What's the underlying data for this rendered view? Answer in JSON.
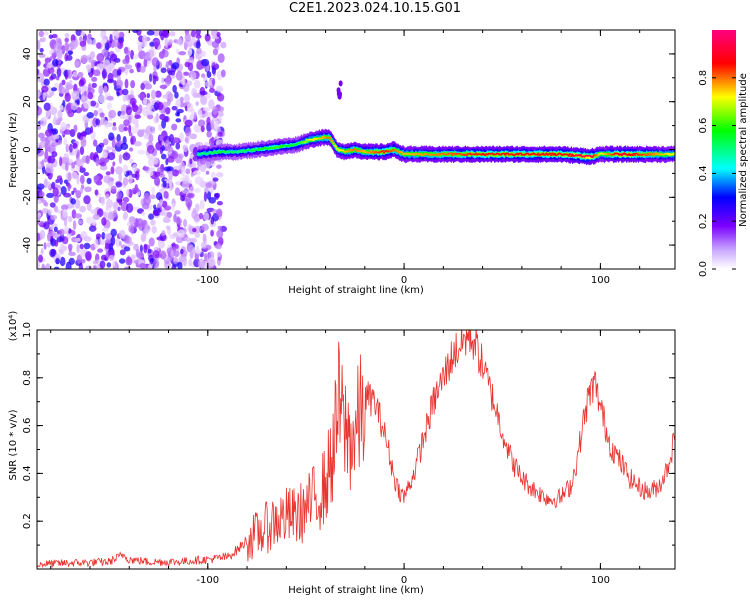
{
  "title": "C2E1.2023.024.10.15.G01",
  "chart_data": [
    {
      "type": "heatmap",
      "xlabel": "Height of straight line (km)",
      "ylabel": "Frequency (Hz)",
      "xlim": [
        -187,
        138
      ],
      "ylim": [
        -50,
        50
      ],
      "x_ticks": [
        -100,
        0,
        100
      ],
      "y_ticks": [
        -40,
        -20,
        0,
        20,
        40
      ],
      "colorbar": {
        "label": "Normalized spectral amplitude",
        "range": [
          0.0,
          1.0
        ],
        "ticks": [
          0.0,
          0.2,
          0.4,
          0.6,
          0.8
        ],
        "colormap": [
          "#ffffff",
          "#7b00ff",
          "#0000ff",
          "#00ffff",
          "#00ff00",
          "#ffff00",
          "#ff0000",
          "#ff0080"
        ]
      },
      "ridge": {
        "x": [
          -105,
          -95,
          -85,
          -75,
          -65,
          -55,
          -48,
          -42,
          -38,
          -34,
          -30,
          -25,
          -20,
          -15,
          -10,
          -5,
          0,
          20,
          40,
          60,
          80,
          95,
          100,
          110,
          125,
          138
        ],
        "y": [
          -2,
          -1,
          -1,
          0,
          1,
          2,
          4,
          5,
          5,
          0,
          -1,
          0,
          -1,
          -1,
          -1,
          0,
          -2,
          -2,
          -2,
          -2,
          -2,
          -3,
          -2,
          -2,
          -2,
          -2
        ],
        "amplitude": [
          0.5,
          0.55,
          0.5,
          0.55,
          0.6,
          0.55,
          0.7,
          0.75,
          0.8,
          0.7,
          0.75,
          0.8,
          0.75,
          0.8,
          0.85,
          0.8,
          0.75,
          0.8,
          0.85,
          0.85,
          0.85,
          0.95,
          0.7,
          0.9,
          0.8,
          0.7
        ]
      },
      "noise_region": {
        "x_range": [
          -187,
          -92
        ],
        "amplitude": 0.15
      },
      "secondary_feature": {
        "x": -33,
        "y": 25,
        "amplitude": 0.15
      },
      "grid": false
    },
    {
      "type": "line",
      "xlabel": "Height of straight line (km)",
      "ylabel": "SNR (10 * v/v)",
      "y_multiplier": "(x10⁴)",
      "xlim": [
        -187,
        138
      ],
      "ylim": [
        0,
        1.0
      ],
      "x_ticks": [
        -100,
        0,
        100
      ],
      "y_ticks": [
        0.2,
        0.4,
        0.6,
        0.8,
        1.0
      ],
      "series": [
        {
          "color": "#e8332e",
          "x": [
            -187,
            -170,
            -150,
            -143,
            -140,
            -130,
            -115,
            -100,
            -90,
            -85,
            -80,
            -72,
            -66,
            -60,
            -55,
            -50,
            -45,
            -40,
            -36,
            -33,
            -31,
            -28,
            -25,
            -22,
            -19,
            -15,
            -11,
            -8,
            -5,
            -2,
            0,
            5,
            10,
            15,
            20,
            25,
            30,
            33,
            36,
            40,
            45,
            50,
            55,
            60,
            65,
            70,
            75,
            80,
            85,
            88,
            91,
            94,
            97,
            100,
            105,
            110,
            115,
            120,
            125,
            130,
            134,
            138
          ],
          "y": [
            0.02,
            0.025,
            0.03,
            0.06,
            0.04,
            0.03,
            0.03,
            0.04,
            0.05,
            0.08,
            0.12,
            0.16,
            0.2,
            0.22,
            0.22,
            0.25,
            0.3,
            0.35,
            0.5,
            0.7,
            0.6,
            0.55,
            0.55,
            0.65,
            0.72,
            0.7,
            0.6,
            0.5,
            0.38,
            0.32,
            0.3,
            0.4,
            0.55,
            0.7,
            0.8,
            0.9,
            0.95,
            0.98,
            0.95,
            0.85,
            0.72,
            0.58,
            0.45,
            0.38,
            0.34,
            0.31,
            0.29,
            0.3,
            0.35,
            0.45,
            0.6,
            0.72,
            0.78,
            0.68,
            0.52,
            0.45,
            0.38,
            0.34,
            0.32,
            0.35,
            0.42,
            0.55
          ]
        }
      ],
      "grid": false
    }
  ]
}
